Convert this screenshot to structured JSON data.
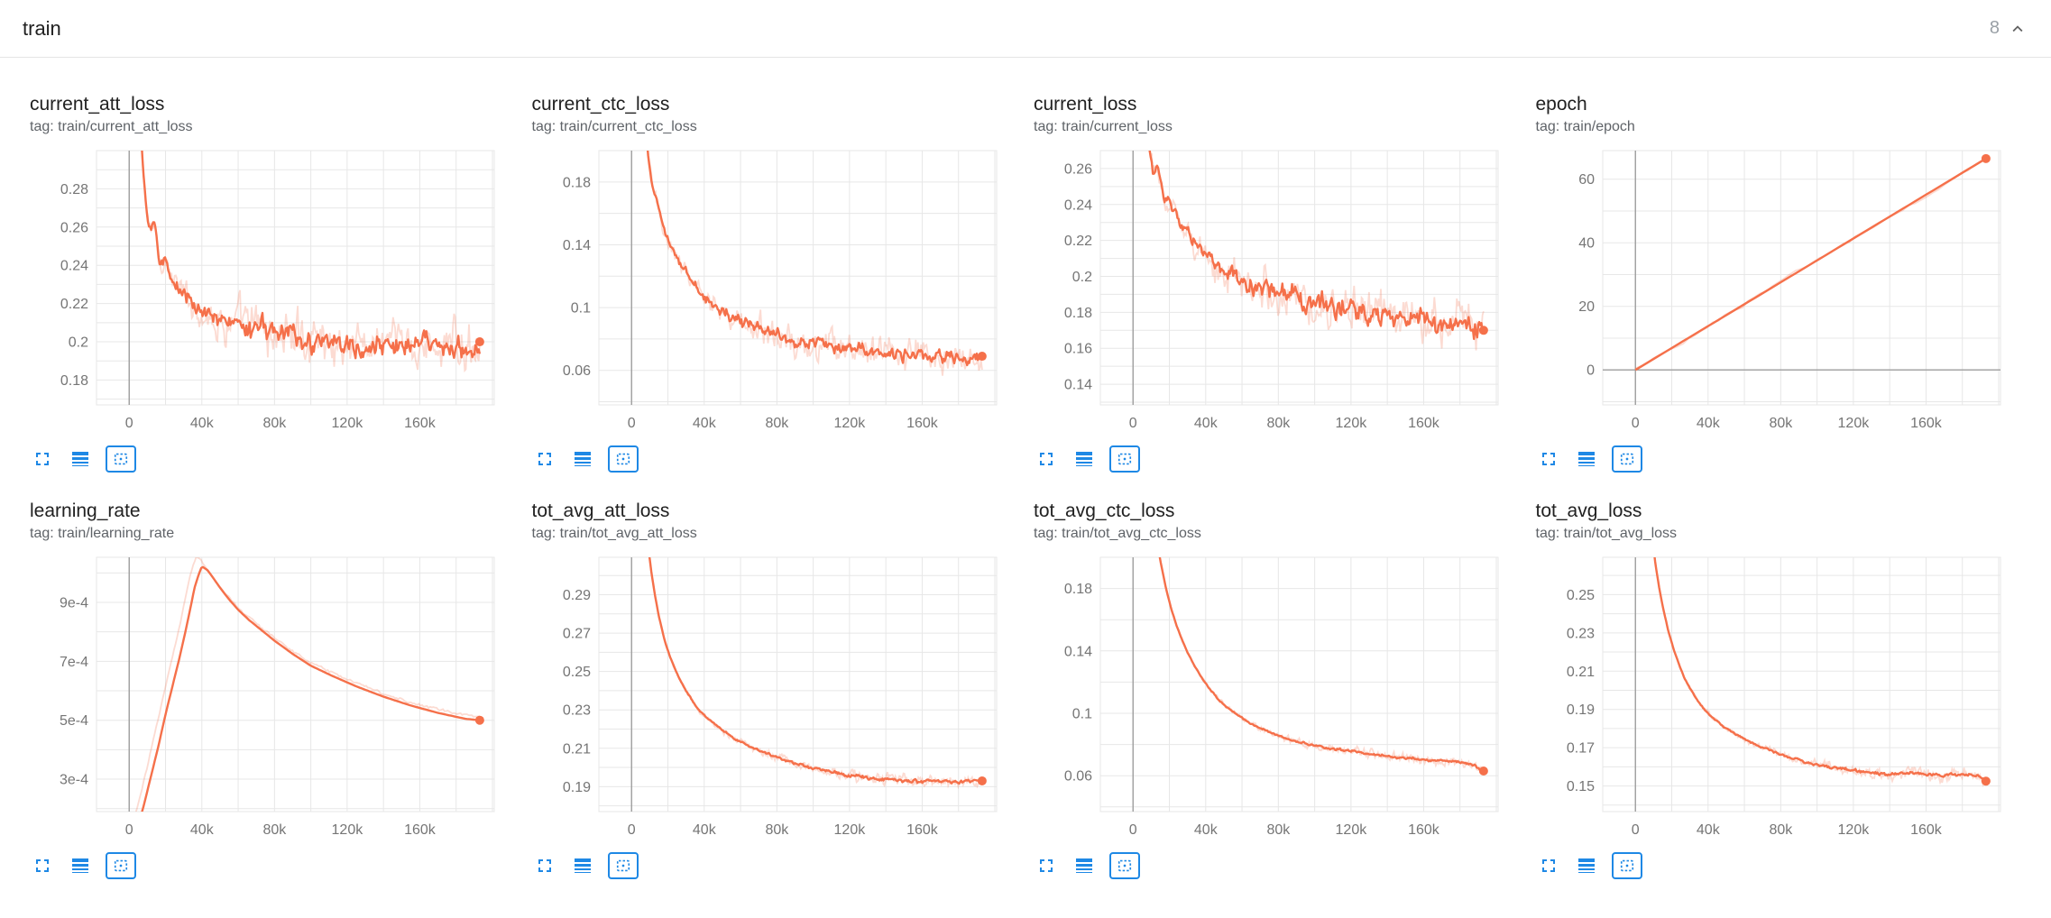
{
  "header": {
    "title": "train",
    "count": "8"
  },
  "colors": {
    "line": "#f5704a",
    "grid": "#e7e7e7",
    "axis_zero": "#9e9e9e",
    "tick_text": "#757575",
    "icon_blue": "#1e88e5",
    "title_text": "#212121",
    "tag_text": "#5f6368",
    "count_text": "#9aa0a6",
    "header_border": "#e5e5e5"
  },
  "icons": {
    "collapse": "chevron-up-icon",
    "expand_chart": "fullscreen-icon",
    "log_scale": "line-weight-icon",
    "fit_domain": "fit-domain-icon"
  },
  "chart_data": [
    {
      "type": "line",
      "title": "current_att_loss",
      "tag": "tag: train/current_att_loss",
      "xlabel": "",
      "ylabel": "",
      "x_unit": "step (thousands)",
      "y_unit": "",
      "xlim": [
        -18,
        201
      ],
      "x_ticks": [
        0,
        40,
        80,
        120,
        160
      ],
      "x_tick_labels": [
        "0",
        "40k",
        "80k",
        "120k",
        "160k"
      ],
      "ylim": [
        0.167,
        0.3
      ],
      "y_ticks": [
        0.18,
        0.2,
        0.22,
        0.24,
        0.26,
        0.28
      ],
      "y_tick_labels": [
        "0.18",
        "0.2",
        "0.22",
        "0.24",
        "0.26",
        "0.28"
      ],
      "series": [
        {
          "name": "train",
          "x": [
            5,
            7,
            9,
            11,
            14,
            17,
            20,
            24,
            28,
            32,
            36,
            40,
            46,
            52,
            58,
            65,
            72,
            80,
            88,
            96,
            104,
            112,
            120,
            130,
            140,
            150,
            160,
            170,
            180,
            188,
            193
          ],
          "y": [
            0.34,
            0.3,
            0.272,
            0.258,
            0.262,
            0.24,
            0.244,
            0.231,
            0.227,
            0.223,
            0.219,
            0.216,
            0.213,
            0.21,
            0.211,
            0.206,
            0.208,
            0.203,
            0.205,
            0.2,
            0.202,
            0.199,
            0.2,
            0.197,
            0.2,
            0.197,
            0.199,
            0.196,
            0.199,
            0.197,
            0.2
          ]
        }
      ],
      "final_step": 193,
      "final_value": 0.2,
      "smooth_noise": 0.0075,
      "raw_noise": 0.016,
      "ramp": [
        0.3,
        2.2
      ],
      "n_points": 320,
      "end_dot": true,
      "zero_x_line": true,
      "zero_y_line": false
    },
    {
      "type": "line",
      "title": "current_ctc_loss",
      "tag": "tag: train/current_ctc_loss",
      "xlabel": "",
      "ylabel": "",
      "x_unit": "step (thousands)",
      "y_unit": "",
      "xlim": [
        -18,
        201
      ],
      "x_ticks": [
        0,
        40,
        80,
        120,
        160
      ],
      "x_tick_labels": [
        "0",
        "40k",
        "80k",
        "120k",
        "160k"
      ],
      "ylim": [
        0.038,
        0.2
      ],
      "y_ticks": [
        0.06,
        0.1,
        0.14,
        0.18
      ],
      "y_tick_labels": [
        "0.06",
        "0.1",
        "0.14",
        "0.18"
      ],
      "series": [
        {
          "name": "train",
          "x": [
            5,
            7,
            9,
            11,
            14,
            17,
            20,
            24,
            28,
            32,
            36,
            40,
            46,
            52,
            58,
            65,
            72,
            80,
            88,
            96,
            104,
            112,
            120,
            130,
            140,
            150,
            160,
            170,
            180,
            188,
            193
          ],
          "y": [
            0.26,
            0.225,
            0.198,
            0.18,
            0.168,
            0.152,
            0.143,
            0.133,
            0.126,
            0.119,
            0.113,
            0.108,
            0.101,
            0.096,
            0.0925,
            0.0885,
            0.086,
            0.082,
            0.08,
            0.0775,
            0.0765,
            0.0745,
            0.0735,
            0.072,
            0.0715,
            0.07,
            0.0705,
            0.069,
            0.0695,
            0.068,
            0.069
          ]
        }
      ],
      "final_step": 193,
      "final_value": 0.069,
      "smooth_noise": 0.0055,
      "raw_noise": 0.013,
      "ramp": [
        0.3,
        2.2
      ],
      "n_points": 320,
      "end_dot": true,
      "zero_x_line": true,
      "zero_y_line": false
    },
    {
      "type": "line",
      "title": "current_loss",
      "tag": "tag: train/current_loss",
      "xlabel": "",
      "ylabel": "",
      "x_unit": "step (thousands)",
      "y_unit": "",
      "xlim": [
        -18,
        201
      ],
      "x_ticks": [
        0,
        40,
        80,
        120,
        160
      ],
      "x_tick_labels": [
        "0",
        "40k",
        "80k",
        "120k",
        "160k"
      ],
      "ylim": [
        0.1285,
        0.27
      ],
      "y_ticks": [
        0.14,
        0.16,
        0.18,
        0.2,
        0.22,
        0.24,
        0.26
      ],
      "y_tick_labels": [
        "0.14",
        "0.16",
        "0.18",
        "0.2",
        "0.22",
        "0.24",
        "0.26"
      ],
      "series": [
        {
          "name": "train",
          "x": [
            5,
            7,
            9,
            11,
            14,
            17,
            20,
            24,
            28,
            32,
            36,
            40,
            46,
            52,
            58,
            65,
            72,
            80,
            88,
            96,
            104,
            112,
            120,
            130,
            140,
            150,
            160,
            170,
            180,
            188,
            193
          ],
          "y": [
            0.33,
            0.298,
            0.272,
            0.258,
            0.261,
            0.242,
            0.244,
            0.233,
            0.227,
            0.221,
            0.216,
            0.212,
            0.206,
            0.201,
            0.202,
            0.195,
            0.197,
            0.19,
            0.192,
            0.185,
            0.187,
            0.182,
            0.183,
            0.178,
            0.18,
            0.176,
            0.178,
            0.173,
            0.175,
            0.172,
            0.17
          ]
        }
      ],
      "final_step": 193,
      "final_value": 0.17,
      "smooth_noise": 0.0075,
      "raw_noise": 0.016,
      "ramp": [
        0.3,
        2.2
      ],
      "n_points": 320,
      "end_dot": true,
      "zero_x_line": true,
      "zero_y_line": false
    },
    {
      "type": "line",
      "title": "epoch",
      "tag": "tag: train/epoch",
      "xlabel": "",
      "ylabel": "",
      "x_unit": "step (thousands)",
      "y_unit": "",
      "xlim": [
        -18,
        201
      ],
      "x_ticks": [
        0,
        40,
        80,
        120,
        160
      ],
      "x_tick_labels": [
        "0",
        "40k",
        "80k",
        "120k",
        "160k"
      ],
      "ylim": [
        -11,
        69
      ],
      "y_ticks": [
        0,
        20,
        40,
        60
      ],
      "y_tick_labels": [
        "0",
        "20",
        "40",
        "60"
      ],
      "series": [
        {
          "name": "train",
          "x": [
            0,
            193
          ],
          "y": [
            0,
            66.5
          ]
        }
      ],
      "final_step": 193,
      "final_value": 66.5,
      "smooth_noise": 0,
      "raw_noise": 0.9,
      "ramp": [
        1,
        0
      ],
      "n_points": 60,
      "end_dot": true,
      "zero_x_line": true,
      "zero_y_line": true
    },
    {
      "type": "line",
      "title": "learning_rate",
      "tag": "tag: train/learning_rate",
      "xlabel": "",
      "ylabel": "",
      "x_unit": "step (thousands)",
      "y_unit": "1e-4",
      "xlim": [
        -18,
        201
      ],
      "x_ticks": [
        0,
        40,
        80,
        120,
        160
      ],
      "x_tick_labels": [
        "0",
        "40k",
        "80k",
        "120k",
        "160k"
      ],
      "ylim": [
        1.9,
        10.53
      ],
      "y_ticks": [
        3,
        5,
        7,
        9
      ],
      "y_tick_labels": [
        "3e-4",
        "5e-4",
        "7e-4",
        "9e-4"
      ],
      "series": [
        {
          "name": "train",
          "x": [
            0,
            4,
            8,
            12,
            16,
            20,
            24,
            28,
            32,
            36,
            38,
            40,
            43,
            46,
            50,
            55,
            60,
            66,
            72,
            80,
            90,
            100,
            112,
            125,
            140,
            155,
            170,
            185,
            193
          ],
          "y": [
            0.2,
            1.2,
            2.1,
            3.1,
            4.1,
            5.2,
            6.2,
            7.2,
            8.3,
            9.5,
            9.9,
            10.22,
            10.1,
            9.85,
            9.5,
            9.1,
            8.75,
            8.4,
            8.1,
            7.7,
            7.25,
            6.85,
            6.5,
            6.15,
            5.8,
            5.5,
            5.25,
            5.05,
            5.0
          ]
        }
      ],
      "final_step": 193,
      "final_value": 5.0,
      "smooth_noise": 0,
      "raw_noise": 0.06,
      "ramp": [
        1,
        0
      ],
      "n_points": 220,
      "raw_shift_x": 3,
      "raw_gain": 1.03,
      "end_dot": true,
      "zero_x_line": true,
      "zero_y_line": false
    },
    {
      "type": "line",
      "title": "tot_avg_att_loss",
      "tag": "tag: train/tot_avg_att_loss",
      "xlabel": "",
      "ylabel": "",
      "x_unit": "step (thousands)",
      "y_unit": "",
      "xlim": [
        -18,
        201
      ],
      "x_ticks": [
        0,
        40,
        80,
        120,
        160
      ],
      "x_tick_labels": [
        "0",
        "40k",
        "80k",
        "120k",
        "160k"
      ],
      "ylim": [
        0.177,
        0.3095
      ],
      "y_ticks": [
        0.19,
        0.21,
        0.23,
        0.25,
        0.27,
        0.29
      ],
      "y_tick_labels": [
        "0.19",
        "0.21",
        "0.23",
        "0.25",
        "0.27",
        "0.29"
      ],
      "series": [
        {
          "name": "train",
          "x": [
            7,
            9,
            11,
            13,
            15,
            18,
            21,
            24,
            27,
            30,
            34,
            38,
            42,
            47,
            52,
            58,
            64,
            70,
            77,
            84,
            92,
            100,
            110,
            120,
            130,
            140,
            150,
            160,
            170,
            180,
            188,
            193
          ],
          "y": [
            0.335,
            0.316,
            0.301,
            0.289,
            0.279,
            0.267,
            0.258,
            0.251,
            0.245,
            0.24,
            0.234,
            0.229,
            0.2255,
            0.2215,
            0.218,
            0.2145,
            0.2115,
            0.209,
            0.2065,
            0.204,
            0.2015,
            0.1995,
            0.1975,
            0.196,
            0.1945,
            0.1938,
            0.1928,
            0.1925,
            0.1932,
            0.1922,
            0.1928,
            0.193
          ]
        }
      ],
      "final_step": 193,
      "final_value": 0.193,
      "smooth_noise": 0.0012,
      "raw_noise": 0.004,
      "ramp": [
        0.1,
        1.5
      ],
      "n_points": 340,
      "end_dot": true,
      "zero_x_line": true,
      "zero_y_line": false
    },
    {
      "type": "line",
      "title": "tot_avg_ctc_loss",
      "tag": "tag: train/tot_avg_ctc_loss",
      "xlabel": "",
      "ylabel": "",
      "x_unit": "step (thousands)",
      "y_unit": "",
      "xlim": [
        -18,
        201
      ],
      "x_ticks": [
        0,
        40,
        80,
        120,
        160
      ],
      "x_tick_labels": [
        "0",
        "40k",
        "80k",
        "120k",
        "160k"
      ],
      "ylim": [
        0.037,
        0.2
      ],
      "y_ticks": [
        0.06,
        0.1,
        0.14,
        0.18
      ],
      "y_tick_labels": [
        "0.06",
        "0.1",
        "0.14",
        "0.18"
      ],
      "series": [
        {
          "name": "train",
          "x": [
            7,
            9,
            11,
            13,
            15,
            18,
            21,
            24,
            27,
            30,
            34,
            38,
            42,
            47,
            52,
            58,
            64,
            70,
            77,
            84,
            92,
            100,
            110,
            120,
            130,
            140,
            150,
            160,
            170,
            180,
            188,
            193
          ],
          "y": [
            0.27,
            0.248,
            0.228,
            0.212,
            0.198,
            0.181,
            0.167,
            0.156,
            0.147,
            0.139,
            0.13,
            0.1225,
            0.116,
            0.109,
            0.1035,
            0.0985,
            0.094,
            0.0905,
            0.087,
            0.0842,
            0.0815,
            0.0792,
            0.0772,
            0.0755,
            0.074,
            0.0726,
            0.0714,
            0.0704,
            0.0696,
            0.0685,
            0.0668,
            0.063
          ]
        }
      ],
      "final_step": 193,
      "final_value": 0.063,
      "smooth_noise": 0.0011,
      "raw_noise": 0.0038,
      "ramp": [
        0.1,
        1.5
      ],
      "n_points": 340,
      "end_dot": true,
      "zero_x_line": true,
      "zero_y_line": false
    },
    {
      "type": "line",
      "title": "tot_avg_loss",
      "tag": "tag: train/tot_avg_loss",
      "xlabel": "",
      "ylabel": "",
      "x_unit": "step (thousands)",
      "y_unit": "",
      "xlim": [
        -18,
        201
      ],
      "x_ticks": [
        0,
        40,
        80,
        120,
        160
      ],
      "x_tick_labels": [
        "0",
        "40k",
        "80k",
        "120k",
        "160k"
      ],
      "ylim": [
        0.1366,
        0.2695
      ],
      "y_ticks": [
        0.15,
        0.17,
        0.19,
        0.21,
        0.23,
        0.25
      ],
      "y_tick_labels": [
        "0.15",
        "0.17",
        "0.19",
        "0.21",
        "0.23",
        "0.25"
      ],
      "series": [
        {
          "name": "train",
          "x": [
            7,
            9,
            11,
            13,
            15,
            18,
            21,
            24,
            27,
            30,
            34,
            38,
            42,
            47,
            52,
            58,
            64,
            70,
            77,
            84,
            92,
            100,
            110,
            120,
            130,
            140,
            150,
            160,
            170,
            180,
            188,
            193
          ],
          "y": [
            0.3,
            0.282,
            0.266,
            0.254,
            0.244,
            0.2315,
            0.2215,
            0.2135,
            0.2065,
            0.201,
            0.195,
            0.19,
            0.1862,
            0.1822,
            0.1788,
            0.1755,
            0.1725,
            0.17,
            0.1675,
            0.1652,
            0.163,
            0.1612,
            0.1595,
            0.158,
            0.1568,
            0.1558,
            0.1572,
            0.156,
            0.1555,
            0.1565,
            0.1552,
            0.1525
          ]
        }
      ],
      "final_step": 193,
      "final_value": 0.1525,
      "smooth_noise": 0.0011,
      "raw_noise": 0.0038,
      "ramp": [
        0.1,
        1.5
      ],
      "n_points": 340,
      "end_dot": true,
      "zero_x_line": true,
      "zero_y_line": false
    }
  ]
}
